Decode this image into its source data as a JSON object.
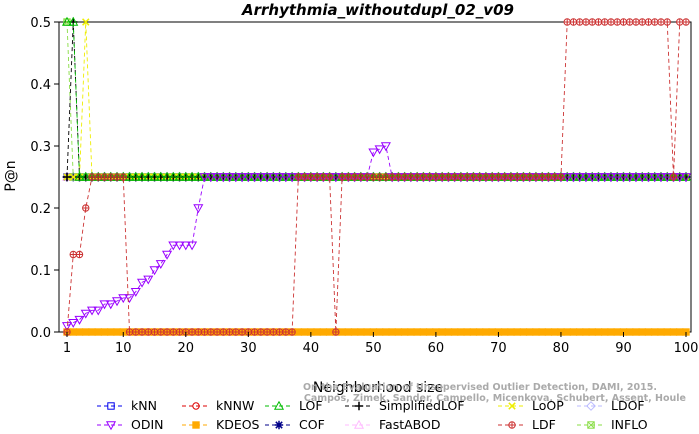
{
  "chart_data": {
    "type": "line",
    "title": "Arrhythmia_withoutdupl_02_v09",
    "xlabel": "Neighborhood size",
    "ylabel": "P@n",
    "xlim": [
      1,
      100
    ],
    "ylim": [
      0,
      0.5
    ],
    "xticks": [
      1,
      10,
      20,
      30,
      40,
      50,
      60,
      70,
      80,
      90,
      100
    ],
    "yticks": [
      0.0,
      0.1,
      0.2,
      0.3,
      0.4,
      0.5
    ],
    "grid": false,
    "legend_position": "bottom",
    "credit_lines": [
      "Campos, Zimek, Sander, Campello, Micenkova, Schubert, Assent, Houle",
      "On the Evaluation of Unsupervised Outlier Detection, DAMI, 2015."
    ],
    "series": [
      {
        "name": "kNN",
        "color": "#0000ee",
        "marker": "square",
        "line": "dashed",
        "values": [
          {
            "from": 1,
            "to": 100,
            "y": 0.25
          }
        ]
      },
      {
        "name": "kNNW",
        "color": "#dd0000",
        "marker": "circle",
        "line": "dashed",
        "values": [
          {
            "from": 1,
            "to": 100,
            "y": 0.25
          }
        ]
      },
      {
        "name": "LOF",
        "color": "#00bb00",
        "marker": "triangle-up",
        "line": "dashed",
        "points": [
          [
            1,
            0.5
          ],
          [
            2,
            0.5
          ],
          [
            3,
            0.25
          ],
          [
            100,
            0.25
          ]
        ]
      },
      {
        "name": "SimplifiedLOF",
        "color": "#000000",
        "marker": "plus",
        "line": "dashed",
        "points": [
          [
            1,
            0.25
          ],
          [
            2,
            0.5
          ],
          [
            3,
            0.25
          ],
          [
            100,
            0.25
          ]
        ]
      },
      {
        "name": "LoOP",
        "color": "#eeee00",
        "marker": "x",
        "line": "dashed",
        "points": [
          [
            1,
            0.25
          ],
          [
            3,
            0.25
          ],
          [
            4,
            0.5
          ],
          [
            5,
            0.25
          ],
          [
            100,
            0.25
          ]
        ]
      },
      {
        "name": "LDOF",
        "color": "#bbbbff",
        "marker": "diamond",
        "line": "dashed",
        "values": [
          {
            "from": 1,
            "to": 100,
            "y": 0.25
          }
        ]
      },
      {
        "name": "ODIN",
        "color": "#9900ff",
        "marker": "triangle-down",
        "line": "dashed",
        "points": [
          [
            1,
            0.01
          ],
          [
            2,
            0.015
          ],
          [
            3,
            0.02
          ],
          [
            4,
            0.03
          ],
          [
            5,
            0.035
          ],
          [
            6,
            0.035
          ],
          [
            7,
            0.045
          ],
          [
            8,
            0.045
          ],
          [
            9,
            0.05
          ],
          [
            10,
            0.055
          ],
          [
            11,
            0.055
          ],
          [
            12,
            0.065
          ],
          [
            13,
            0.08
          ],
          [
            14,
            0.085
          ],
          [
            15,
            0.1
          ],
          [
            16,
            0.11
          ],
          [
            17,
            0.125
          ],
          [
            18,
            0.14
          ],
          [
            19,
            0.14
          ],
          [
            20,
            0.14
          ],
          [
            21,
            0.14
          ],
          [
            22,
            0.2
          ],
          [
            23,
            0.25
          ],
          [
            49,
            0.25
          ],
          [
            50,
            0.29
          ],
          [
            51,
            0.295
          ],
          [
            52,
            0.3
          ],
          [
            53,
            0.25
          ],
          [
            100,
            0.25
          ]
        ]
      },
      {
        "name": "KDEOS",
        "color": "#ffaa00",
        "marker": "square-filled",
        "line": "dashed",
        "values": [
          {
            "from": 1,
            "to": 100,
            "y": 0.0
          }
        ]
      },
      {
        "name": "COF",
        "color": "#000088",
        "marker": "asterisk",
        "line": "dashed",
        "values": [
          {
            "from": 1,
            "to": 100,
            "y": 0.25
          }
        ]
      },
      {
        "name": "FastABOD",
        "color": "#ffbbff",
        "marker": "triangle-up",
        "line": "dashed",
        "values": [
          {
            "from": 1,
            "to": 100,
            "y": 0.25
          }
        ]
      },
      {
        "name": "LDF",
        "color": "#cc3333",
        "marker": "circle-dot",
        "line": "dashed",
        "points": [
          [
            1,
            0.0
          ],
          [
            2,
            0.125
          ],
          [
            3,
            0.125
          ],
          [
            4,
            0.2
          ],
          [
            5,
            0.25
          ],
          [
            10,
            0.25
          ],
          [
            11,
            0.0
          ],
          [
            37,
            0.0
          ],
          [
            38,
            0.25
          ],
          [
            43,
            0.25
          ],
          [
            44,
            0.0
          ],
          [
            45,
            0.25
          ],
          [
            80,
            0.25
          ],
          [
            81,
            0.5
          ],
          [
            97,
            0.5
          ],
          [
            98,
            0.25
          ],
          [
            99,
            0.5
          ],
          [
            100,
            0.5
          ]
        ]
      },
      {
        "name": "INFLO",
        "color": "#88dd44",
        "marker": "square-x",
        "line": "dashed",
        "points": [
          [
            1,
            0.5
          ],
          [
            2,
            0.25
          ],
          [
            100,
            0.25
          ]
        ]
      }
    ]
  }
}
